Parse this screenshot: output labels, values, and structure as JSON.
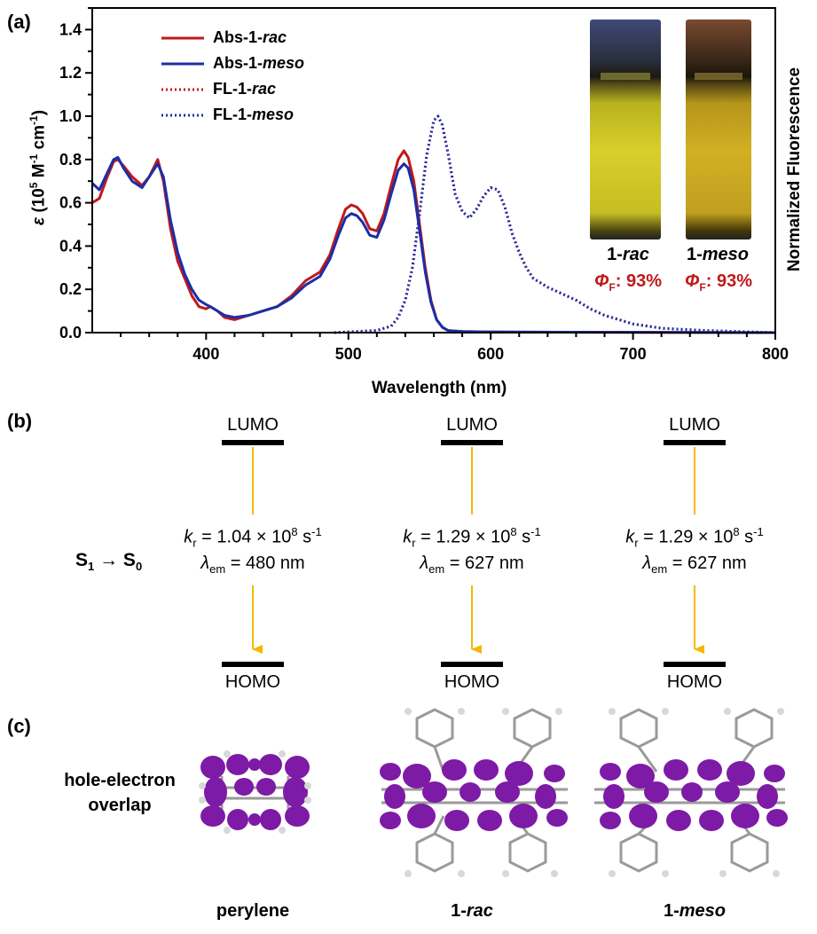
{
  "panels": {
    "a": "(a)",
    "b": "(b)",
    "c": "(c)"
  },
  "chart_data": {
    "type": "line",
    "x_axis": {
      "label": "Wavelength (nm)",
      "range": [
        320,
        800
      ],
      "ticks": [
        400,
        500,
        600,
        700,
        800
      ]
    },
    "y_axis": {
      "label_prefix": "ε (10",
      "label_full": "ε (10^5 M^-1 cm^-1)",
      "range": [
        0,
        1.5
      ],
      "ticks": [
        "0.0",
        "0.2",
        "0.4",
        "0.6",
        "0.8",
        "1.0",
        "1.2",
        "1.4"
      ],
      "tick_values": [
        0.0,
        0.2,
        0.4,
        0.6,
        0.8,
        1.0,
        1.2,
        1.4
      ]
    },
    "y2_label": "Normalized Fluorescence",
    "series": [
      {
        "name": "Abs-1-rac",
        "name_base": "Abs-1-",
        "name_it": "rac",
        "style": "solid",
        "color": "#c0191c",
        "x": [
          320,
          325,
          330,
          335,
          338,
          342,
          348,
          355,
          360,
          366,
          370,
          375,
          380,
          385,
          390,
          395,
          400,
          403,
          408,
          413,
          420,
          430,
          440,
          450,
          460,
          470,
          480,
          487,
          493,
          498,
          502,
          506,
          510,
          515,
          520,
          525,
          530,
          535,
          539,
          542,
          546,
          550,
          554,
          558,
          562,
          566,
          570,
          580,
          600,
          650,
          800
        ],
        "y": [
          0.6,
          0.62,
          0.71,
          0.79,
          0.8,
          0.77,
          0.72,
          0.68,
          0.72,
          0.8,
          0.7,
          0.48,
          0.33,
          0.25,
          0.17,
          0.12,
          0.11,
          0.12,
          0.1,
          0.07,
          0.06,
          0.08,
          0.1,
          0.12,
          0.17,
          0.24,
          0.28,
          0.36,
          0.48,
          0.57,
          0.59,
          0.58,
          0.55,
          0.48,
          0.47,
          0.55,
          0.68,
          0.8,
          0.84,
          0.81,
          0.7,
          0.5,
          0.3,
          0.15,
          0.06,
          0.025,
          0.01,
          0.005,
          0.003,
          0.002,
          0.0
        ]
      },
      {
        "name": "Abs-1-meso",
        "name_base": "Abs-1-",
        "name_it": "meso",
        "style": "solid",
        "color": "#1a2ea8",
        "x": [
          320,
          325,
          330,
          335,
          338,
          342,
          348,
          355,
          360,
          366,
          370,
          375,
          380,
          385,
          390,
          395,
          400,
          403,
          408,
          413,
          420,
          430,
          440,
          450,
          460,
          470,
          480,
          487,
          493,
          498,
          502,
          506,
          510,
          515,
          520,
          525,
          530,
          535,
          539,
          542,
          546,
          550,
          554,
          558,
          562,
          566,
          570,
          580,
          600,
          650,
          800
        ],
        "y": [
          0.69,
          0.66,
          0.73,
          0.8,
          0.81,
          0.76,
          0.7,
          0.67,
          0.72,
          0.78,
          0.72,
          0.52,
          0.37,
          0.27,
          0.2,
          0.15,
          0.13,
          0.12,
          0.1,
          0.08,
          0.07,
          0.08,
          0.1,
          0.12,
          0.16,
          0.22,
          0.26,
          0.34,
          0.45,
          0.53,
          0.55,
          0.54,
          0.51,
          0.45,
          0.44,
          0.52,
          0.64,
          0.75,
          0.78,
          0.76,
          0.66,
          0.47,
          0.28,
          0.14,
          0.06,
          0.025,
          0.01,
          0.005,
          0.003,
          0.002,
          0.0
        ]
      },
      {
        "name": "FL-1-rac",
        "name_base": "FL-1-",
        "name_it": "rac",
        "style": "dotted",
        "color": "#c0191c",
        "x": [
          490,
          520,
          530,
          535,
          540,
          545,
          550,
          555,
          560,
          563,
          566,
          570,
          575,
          580,
          585,
          590,
          595,
          600,
          605,
          610,
          615,
          620,
          625,
          630,
          640,
          650,
          660,
          670,
          680,
          700,
          720,
          750,
          800
        ],
        "y": [
          0.0,
          0.01,
          0.03,
          0.07,
          0.15,
          0.3,
          0.55,
          0.82,
          0.98,
          1.0,
          0.96,
          0.83,
          0.64,
          0.56,
          0.53,
          0.57,
          0.63,
          0.67,
          0.66,
          0.58,
          0.46,
          0.37,
          0.3,
          0.25,
          0.21,
          0.18,
          0.15,
          0.11,
          0.08,
          0.04,
          0.02,
          0.01,
          0.0
        ]
      },
      {
        "name": "FL-1-meso",
        "name_base": "FL-1-",
        "name_it": "meso",
        "style": "dotted",
        "color": "#1a2ea8",
        "x": [
          490,
          520,
          530,
          535,
          540,
          545,
          550,
          555,
          560,
          563,
          566,
          570,
          575,
          580,
          585,
          590,
          595,
          600,
          605,
          610,
          615,
          620,
          625,
          630,
          640,
          650,
          660,
          670,
          680,
          700,
          720,
          750,
          800
        ],
        "y": [
          0.0,
          0.01,
          0.03,
          0.07,
          0.15,
          0.3,
          0.55,
          0.82,
          0.98,
          1.0,
          0.96,
          0.83,
          0.64,
          0.56,
          0.53,
          0.57,
          0.63,
          0.67,
          0.66,
          0.58,
          0.46,
          0.37,
          0.3,
          0.25,
          0.21,
          0.18,
          0.15,
          0.11,
          0.08,
          0.04,
          0.02,
          0.01,
          0.0
        ]
      }
    ],
    "legend_placement": "top-left",
    "vials": [
      {
        "label_base": "1-",
        "label_it": "rac",
        "phi": ": 93%"
      },
      {
        "label_base": "1-",
        "label_it": "meso",
        "phi": ": 93%"
      }
    ]
  },
  "panel_b": {
    "transition": "S1 → S0",
    "lumo": "LUMO",
    "homo": "HOMO",
    "columns": [
      {
        "kr": "1.04",
        "lem": "480"
      },
      {
        "kr": "1.29",
        "lem": "627"
      },
      {
        "kr": "1.29",
        "lem": "627"
      }
    ]
  },
  "panel_c": {
    "overlap_line1": "hole-electron",
    "overlap_line2": "overlap",
    "molecules": [
      {
        "name_base": "perylene",
        "name_it": ""
      },
      {
        "name_base": "1-",
        "name_it": "rac"
      },
      {
        "name_base": "1-",
        "name_it": "meso"
      }
    ]
  },
  "colors": {
    "red": "#c0191c",
    "blue": "#1a2ea8",
    "arrow": "#f5b800",
    "lobe": "#8a1fb0"
  }
}
